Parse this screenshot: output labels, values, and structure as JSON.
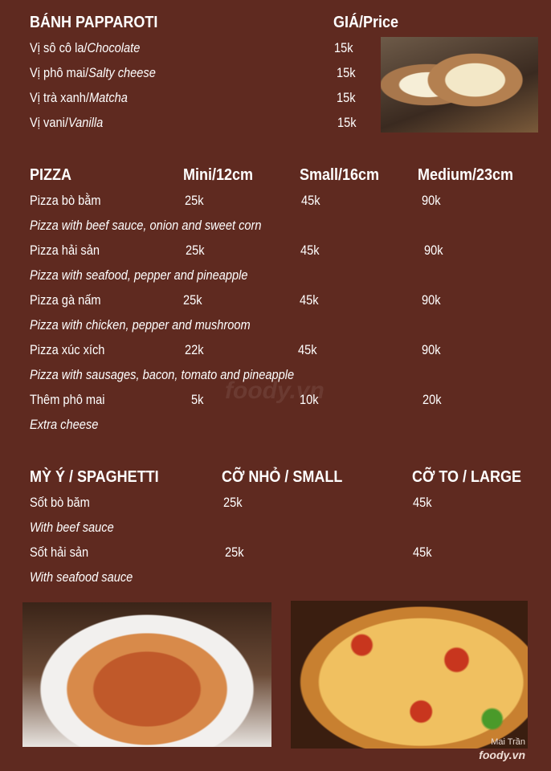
{
  "papparoti": {
    "title": "BÁNH PAPPAROTI",
    "price_header": "GIÁ/Price",
    "items": [
      {
        "vi": "Vị sô cô la/",
        "en": "Chocolate",
        "price": "15k"
      },
      {
        "vi": "Vị phô mai/",
        "en": "Salty cheese",
        "price": "15k"
      },
      {
        "vi": "Vị trà xanh/",
        "en": "Matcha",
        "price": "15k"
      },
      {
        "vi": "Vị vani/",
        "en": "Vanilla",
        "price": "15k"
      }
    ]
  },
  "pizza": {
    "title": "PIZZA",
    "columns": [
      "Mini/12cm",
      "Small/16cm",
      "Medium/23cm"
    ],
    "items": [
      {
        "vi": "Pizza bò bằm",
        "en": "Pizza with beef sauce, onion and sweet corn",
        "prices": [
          "25k",
          "45k",
          "90k"
        ]
      },
      {
        "vi": "Pizza hải sản",
        "en": "Pizza with seafood, pepper and pineapple",
        "prices": [
          "25k",
          "45k",
          "90k"
        ]
      },
      {
        "vi": "Pizza gà nấm",
        "en": "Pizza with chicken, pepper and mushroom",
        "prices": [
          "25k",
          "45k",
          "90k"
        ]
      },
      {
        "vi": "Pizza xúc xích",
        "en": "Pizza with sausages, bacon, tomato and pineapple",
        "prices": [
          "22k",
          "45k",
          "90k"
        ]
      },
      {
        "vi": "Thêm phô mai",
        "en": "Extra cheese",
        "prices": [
          "5k",
          "10k",
          "20k"
        ]
      }
    ]
  },
  "spaghetti": {
    "title": "MỲ Ý / SPAGHETTI",
    "columns": [
      "CỠ NHỎ / SMALL",
      "CỠ TO / LARGE"
    ],
    "items": [
      {
        "vi": "Sốt bò băm",
        "en": "With beef sauce",
        "prices": [
          "25k",
          "45k"
        ]
      },
      {
        "vi": "Sốt hải sản",
        "en": "With seafood sauce",
        "prices": [
          "25k",
          "45k"
        ]
      }
    ]
  },
  "watermark": {
    "user": "Mai Trần",
    "brand": "foody.vn"
  }
}
